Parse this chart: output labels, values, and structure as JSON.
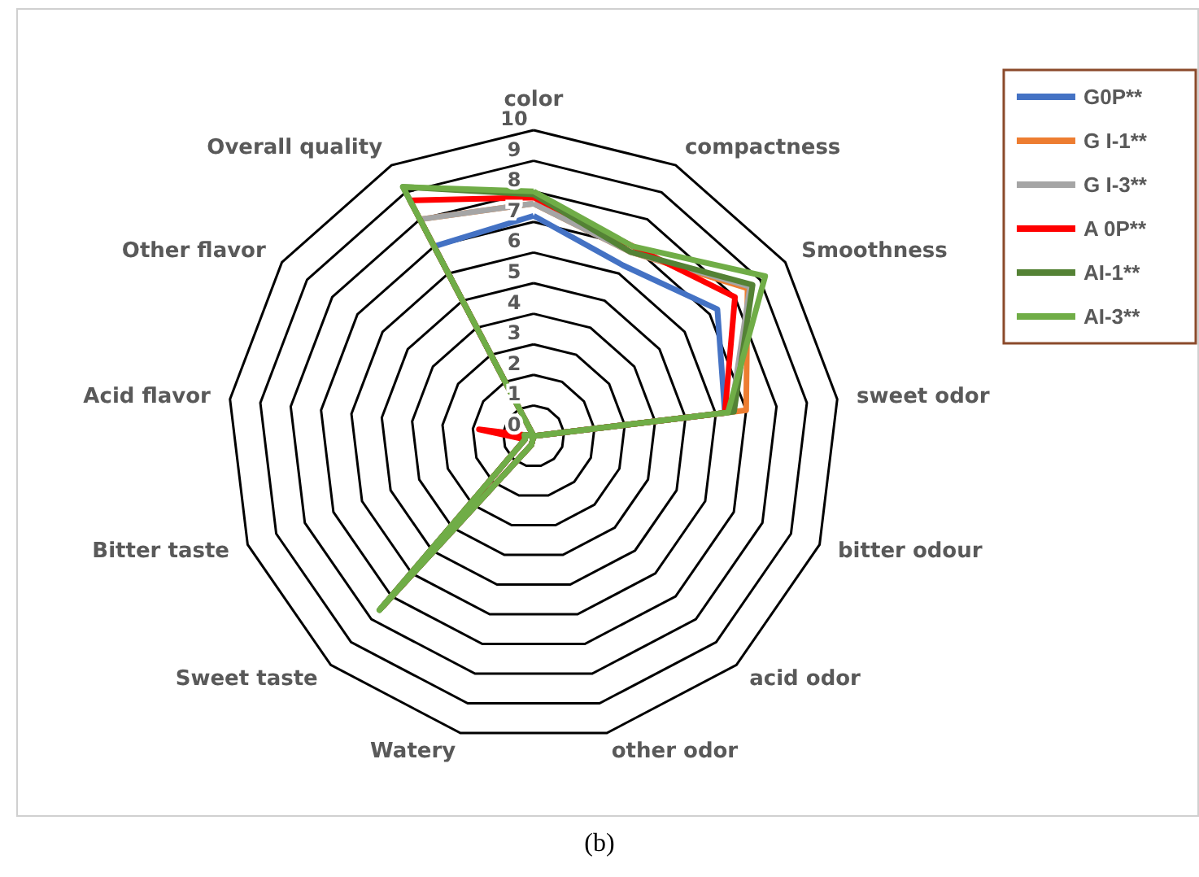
{
  "chart_data": {
    "type": "radar",
    "categories": [
      "color",
      "compactness",
      "Smoothness",
      "sweet odor",
      "bitter odour",
      "acid odor",
      "other odor",
      "Watery",
      "Sweet taste",
      "Bitter taste",
      "Acid flavor",
      "Other flavor",
      "Overall quality"
    ],
    "ylim": [
      0,
      10
    ],
    "yticks": [
      0,
      1,
      2,
      3,
      4,
      5,
      6,
      7,
      8,
      9,
      10
    ],
    "series": [
      {
        "name": "G0P**",
        "color": "#4472c4",
        "values": [
          7.2,
          6.3,
          7.3,
          6.3,
          0,
          0,
          0,
          0.3,
          7.5,
          0.3,
          0.3,
          0,
          7.0
        ]
      },
      {
        "name": "G I-1**",
        "color": "#ed7d31",
        "values": [
          7.6,
          6.8,
          8.5,
          7.0,
          0,
          0,
          0,
          0.3,
          7.5,
          0.3,
          0.3,
          0,
          8.0
        ]
      },
      {
        "name": "G I-3**",
        "color": "#a5a5a5",
        "values": [
          7.6,
          6.8,
          8.6,
          6.5,
          0,
          0,
          0,
          0.3,
          7.5,
          0.3,
          0.3,
          0,
          8.0
        ]
      },
      {
        "name": "A 0P**",
        "color": "#ff0000",
        "values": [
          7.8,
          7.0,
          8.0,
          6.3,
          0,
          0,
          0,
          0.3,
          7.4,
          0.3,
          1.8,
          0,
          8.7
        ]
      },
      {
        "name": "AI-1**",
        "color": "#548235",
        "values": [
          7.9,
          6.8,
          8.7,
          6.6,
          0,
          0,
          0,
          0.3,
          7.6,
          0.3,
          0.3,
          0,
          9.2
        ]
      },
      {
        "name": "AI-3**",
        "color": "#70ad47",
        "values": [
          8.0,
          7.0,
          9.2,
          6.4,
          0,
          0,
          0,
          0.3,
          7.6,
          0.3,
          0.3,
          0,
          9.2
        ]
      }
    ],
    "legend": "top right",
    "annotations": [
      "(b)"
    ]
  }
}
